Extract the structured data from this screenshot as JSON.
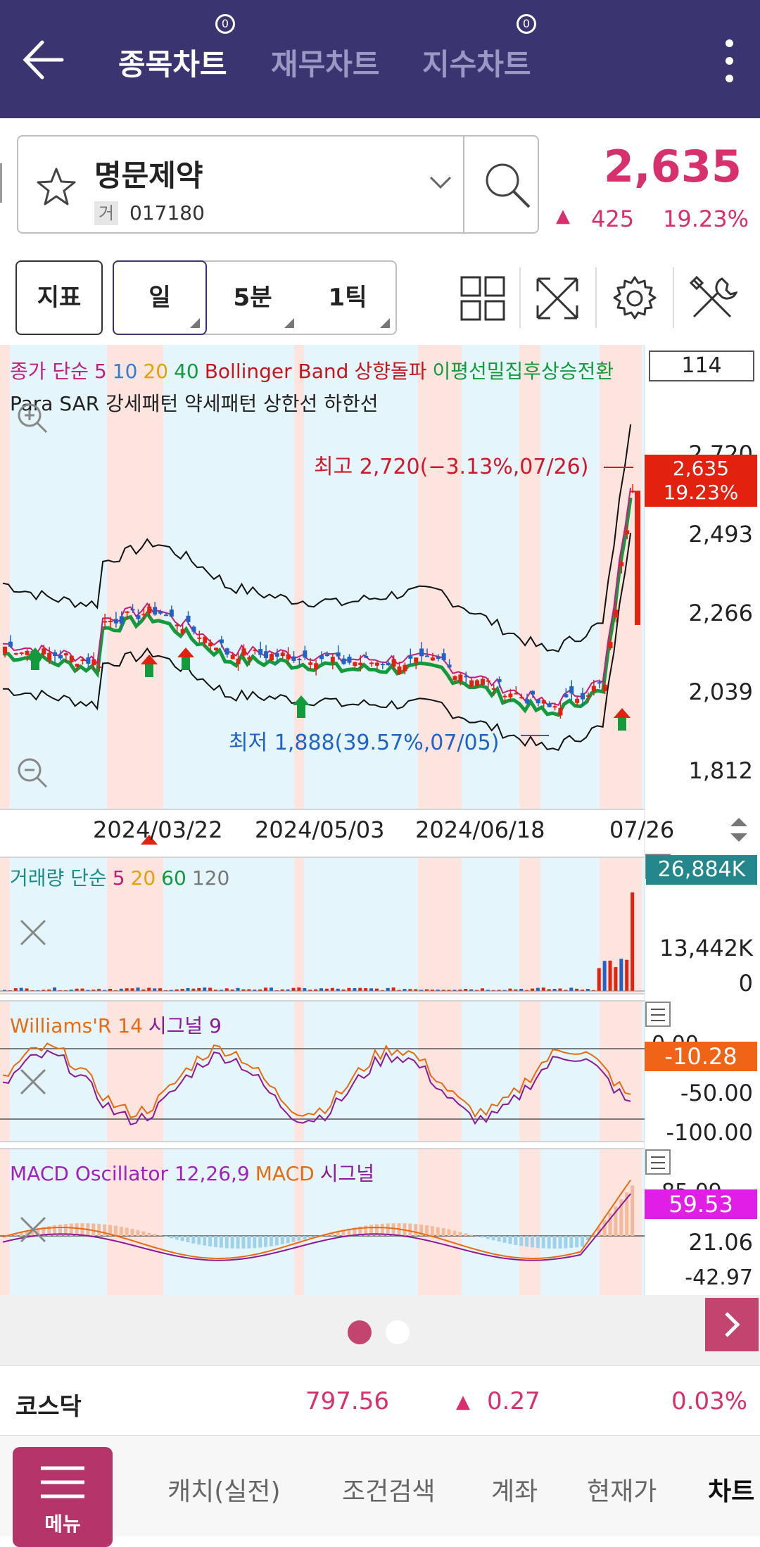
{
  "topbar": {
    "tabs": [
      {
        "label": "종목차트",
        "active": true
      },
      {
        "label": "재무차트",
        "active": false
      },
      {
        "label": "지수차트",
        "active": false
      }
    ],
    "sub_badge": "0"
  },
  "stock": {
    "name": "명문제약",
    "market": "거",
    "code": "017180",
    "price": "2,635",
    "change_arrow": "▲",
    "change": "425",
    "change_pct": "19.23%"
  },
  "toolbar": {
    "indicator_label": "지표",
    "periods": [
      "일",
      "5분",
      "1틱"
    ],
    "selected_period": "일"
  },
  "price_chart": {
    "legend1": [
      {
        "text": "종가 단순",
        "color": "#c41d7f"
      },
      {
        "text": "5",
        "color": "#c41d7f"
      },
      {
        "text": "10",
        "color": "#2f7fd4"
      },
      {
        "text": "20",
        "color": "#e5a200"
      },
      {
        "text": "40",
        "color": "#139a3c"
      },
      {
        "text": "Bollinger Band",
        "color": "#c4161c"
      },
      {
        "text": "상향돌파",
        "color": "#c4161c"
      },
      {
        "text": "이평선밀집후상승전환",
        "color": "#139a3c"
      }
    ],
    "legend2": "Para SAR 강세패턴 약세패턴 상한선 하한선",
    "count_box": "114",
    "y_ticks": [
      "2,720",
      "2,493",
      "2,266",
      "2,039",
      "1,812"
    ],
    "high_note": "최고 2,720(−3.13%,07/26)",
    "low_note": "최저 1,888(39.57%,07/05)",
    "current_badge_price": "2,635",
    "current_badge_pct": "19.23%",
    "x_labels": [
      "2024/03/22",
      "2024/05/03",
      "2024/06/18",
      "07/26"
    ]
  },
  "volume": {
    "legend": [
      {
        "text": "거래량 단순",
        "color": "#1a8a8a"
      },
      {
        "text": "5",
        "color": "#c41d7f"
      },
      {
        "text": "20",
        "color": "#e5a200"
      },
      {
        "text": "60",
        "color": "#139a3c"
      },
      {
        "text": "120",
        "color": "#777777"
      }
    ],
    "badge": "26,884K",
    "ticks": [
      "13,442K",
      "0"
    ]
  },
  "williams": {
    "legend": [
      {
        "text": "Williams'R 14",
        "color": "#e86b12"
      },
      {
        "text": "시그널 9",
        "color": "#8b1a9a"
      }
    ],
    "badge": "-10.28",
    "ticks": [
      "0.00",
      "-50.00",
      "-100.00"
    ]
  },
  "macd": {
    "legend": [
      {
        "text": "MACD Oscillator 12,26,9",
        "color": "#a020c0"
      },
      {
        "text": "MACD",
        "color": "#e86b12"
      },
      {
        "text": "시그널",
        "color": "#8b1a9a"
      }
    ],
    "badge": "59.53",
    "ticks": [
      "85.09",
      "21.06",
      "-42.97"
    ]
  },
  "market": {
    "name": "코스닥",
    "value": "797.56",
    "arrow": "▲",
    "change": "0.27",
    "pct": "0.03%"
  },
  "bottomnav": {
    "menu_label": "메뉴",
    "items": [
      "캐치(실전)",
      "조건검색",
      "계좌",
      "현재가",
      "차트"
    ]
  },
  "colors": {
    "topbar": "#3a3570",
    "up": "#d7306d",
    "menu": "#b5356b"
  }
}
